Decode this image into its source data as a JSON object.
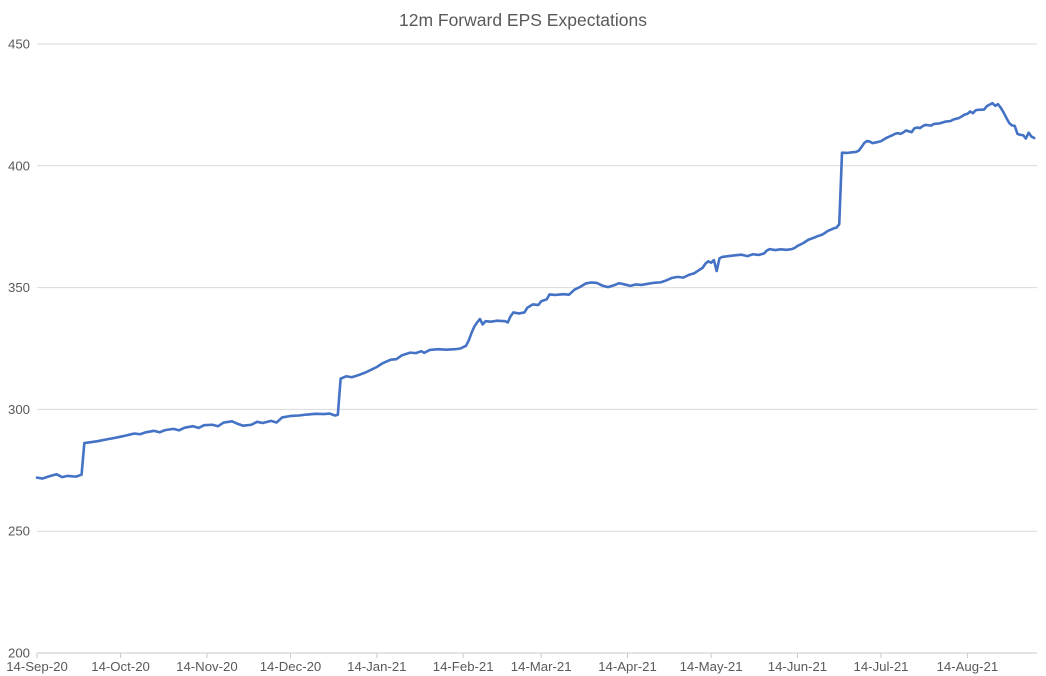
{
  "title": "12m Forward EPS Expectations",
  "colors": {
    "series": "#4472C4",
    "title_text": "#595959",
    "axis_text": "#595959",
    "gridline": "#D9D9D9",
    "axis_line": "#C9C9C9",
    "background": "#FFFFFF"
  },
  "chart_data": {
    "type": "line",
    "title": "12m Forward EPS Expectations",
    "xlabel": "",
    "ylabel": "",
    "legend": "none",
    "grid": "horizontal",
    "ylim": [
      200,
      450
    ],
    "y_ticks": [
      200,
      250,
      300,
      350,
      400,
      450
    ],
    "x_tick_labels": [
      "14-Sep-20",
      "14-Oct-20",
      "14-Nov-20",
      "14-Dec-20",
      "14-Jan-21",
      "14-Feb-21",
      "14-Mar-21",
      "14-Apr-21",
      "14-May-21",
      "14-Jun-21",
      "14-Jul-21",
      "14-Aug-21"
    ],
    "x_tick_days": [
      0,
      30,
      61,
      91,
      122,
      153,
      181,
      212,
      242,
      273,
      303,
      334
    ],
    "x_axis_max_day": 359,
    "x_start_date": "14-Sep-20",
    "series_name": "12m Forward EPS",
    "points": [
      [
        0,
        272.0
      ],
      [
        2,
        271.6
      ],
      [
        4,
        272.4
      ],
      [
        7,
        273.4
      ],
      [
        9,
        272.2
      ],
      [
        11,
        272.7
      ],
      [
        14,
        272.4
      ],
      [
        16,
        273.2
      ],
      [
        17,
        286.2
      ],
      [
        19,
        286.5
      ],
      [
        22,
        287.0
      ],
      [
        25,
        287.7
      ],
      [
        28,
        288.3
      ],
      [
        30,
        288.8
      ],
      [
        32,
        289.3
      ],
      [
        35,
        290.1
      ],
      [
        37,
        289.8
      ],
      [
        39,
        290.6
      ],
      [
        42,
        291.2
      ],
      [
        44,
        290.6
      ],
      [
        46,
        291.5
      ],
      [
        49,
        292.0
      ],
      [
        51,
        291.4
      ],
      [
        53,
        292.5
      ],
      [
        56,
        293.1
      ],
      [
        58,
        292.4
      ],
      [
        60,
        293.5
      ],
      [
        63,
        293.7
      ],
      [
        65,
        293.1
      ],
      [
        67,
        294.6
      ],
      [
        70,
        295.1
      ],
      [
        72,
        294.1
      ],
      [
        74,
        293.3
      ],
      [
        77,
        293.7
      ],
      [
        79,
        294.9
      ],
      [
        81,
        294.4
      ],
      [
        84,
        295.3
      ],
      [
        86,
        294.6
      ],
      [
        88,
        296.7
      ],
      [
        91,
        297.3
      ],
      [
        94,
        297.5
      ],
      [
        97,
        297.9
      ],
      [
        100,
        298.2
      ],
      [
        103,
        298.1
      ],
      [
        105,
        298.3
      ],
      [
        107,
        297.5
      ],
      [
        108,
        297.8
      ],
      [
        109,
        312.6
      ],
      [
        111,
        313.6
      ],
      [
        113,
        313.2
      ],
      [
        115,
        313.9
      ],
      [
        118,
        315.2
      ],
      [
        120,
        316.3
      ],
      [
        122,
        317.4
      ],
      [
        124,
        318.9
      ],
      [
        127,
        320.4
      ],
      [
        129,
        320.6
      ],
      [
        131,
        322.2
      ],
      [
        134,
        323.3
      ],
      [
        136,
        323.1
      ],
      [
        138,
        323.9
      ],
      [
        139,
        323.2
      ],
      [
        141,
        324.4
      ],
      [
        144,
        324.7
      ],
      [
        147,
        324.5
      ],
      [
        150,
        324.7
      ],
      [
        152,
        325.0
      ],
      [
        154,
        326.1
      ],
      [
        155,
        328.3
      ],
      [
        156,
        331.4
      ],
      [
        157,
        334.0
      ],
      [
        158,
        335.7
      ],
      [
        159,
        337.1
      ],
      [
        160,
        334.9
      ],
      [
        161,
        336.2
      ],
      [
        163,
        336.0
      ],
      [
        165,
        336.4
      ],
      [
        168,
        336.2
      ],
      [
        169,
        335.7
      ],
      [
        170,
        338.2
      ],
      [
        171,
        339.8
      ],
      [
        173,
        339.4
      ],
      [
        175,
        339.8
      ],
      [
        176,
        341.7
      ],
      [
        178,
        343.1
      ],
      [
        180,
        342.9
      ],
      [
        181,
        344.4
      ],
      [
        183,
        345.2
      ],
      [
        184,
        347.2
      ],
      [
        186,
        347.0
      ],
      [
        189,
        347.3
      ],
      [
        191,
        347.1
      ],
      [
        193,
        349.2
      ],
      [
        195,
        350.3
      ],
      [
        197,
        351.7
      ],
      [
        199,
        352.1
      ],
      [
        201,
        351.9
      ],
      [
        203,
        350.8
      ],
      [
        205,
        350.2
      ],
      [
        207,
        350.9
      ],
      [
        209,
        351.8
      ],
      [
        211,
        351.3
      ],
      [
        213,
        350.7
      ],
      [
        215,
        351.3
      ],
      [
        217,
        351.1
      ],
      [
        219,
        351.5
      ],
      [
        221,
        351.9
      ],
      [
        224,
        352.2
      ],
      [
        226,
        353.0
      ],
      [
        228,
        354.0
      ],
      [
        230,
        354.4
      ],
      [
        232,
        354.1
      ],
      [
        234,
        355.2
      ],
      [
        236,
        355.9
      ],
      [
        237,
        356.7
      ],
      [
        239,
        358.2
      ],
      [
        240,
        359.9
      ],
      [
        241,
        360.8
      ],
      [
        242,
        360.2
      ],
      [
        243,
        361.3
      ],
      [
        244,
        356.8
      ],
      [
        245,
        362.0
      ],
      [
        246,
        362.6
      ],
      [
        248,
        362.9
      ],
      [
        251,
        363.3
      ],
      [
        253,
        363.5
      ],
      [
        255,
        362.9
      ],
      [
        257,
        363.7
      ],
      [
        259,
        363.4
      ],
      [
        261,
        364.0
      ],
      [
        262,
        365.2
      ],
      [
        263,
        365.8
      ],
      [
        265,
        365.4
      ],
      [
        267,
        365.7
      ],
      [
        269,
        365.5
      ],
      [
        271,
        365.8
      ],
      [
        272,
        366.3
      ],
      [
        273,
        367.1
      ],
      [
        275,
        368.2
      ],
      [
        277,
        369.7
      ],
      [
        279,
        370.5
      ],
      [
        280,
        371.0
      ],
      [
        282,
        371.8
      ],
      [
        284,
        373.3
      ],
      [
        286,
        374.3
      ],
      [
        287,
        374.6
      ],
      [
        288,
        376.0
      ],
      [
        289,
        405.4
      ],
      [
        291,
        405.3
      ],
      [
        293,
        405.6
      ],
      [
        294,
        405.7
      ],
      [
        295,
        406.2
      ],
      [
        296,
        407.7
      ],
      [
        297,
        409.4
      ],
      [
        298,
        410.2
      ],
      [
        299,
        409.9
      ],
      [
        300,
        409.3
      ],
      [
        302,
        409.8
      ],
      [
        303,
        410.1
      ],
      [
        305,
        411.5
      ],
      [
        307,
        412.5
      ],
      [
        308,
        413.1
      ],
      [
        309,
        413.4
      ],
      [
        310,
        413.1
      ],
      [
        311,
        413.7
      ],
      [
        312,
        414.5
      ],
      [
        314,
        413.8
      ],
      [
        315,
        415.4
      ],
      [
        316,
        415.7
      ],
      [
        317,
        415.5
      ],
      [
        318,
        416.3
      ],
      [
        319,
        416.8
      ],
      [
        321,
        416.5
      ],
      [
        322,
        417.2
      ],
      [
        324,
        417.4
      ],
      [
        326,
        418.1
      ],
      [
        328,
        418.4
      ],
      [
        329,
        419.0
      ],
      [
        331,
        419.6
      ],
      [
        332,
        420.3
      ],
      [
        333,
        421.0
      ],
      [
        334,
        421.3
      ],
      [
        335,
        422.3
      ],
      [
        336,
        421.6
      ],
      [
        337,
        422.8
      ],
      [
        338,
        423.0
      ],
      [
        340,
        423.1
      ],
      [
        341,
        424.5
      ],
      [
        342,
        425.1
      ],
      [
        343,
        425.7
      ],
      [
        344,
        424.6
      ],
      [
        345,
        425.3
      ],
      [
        346,
        423.8
      ],
      [
        347,
        421.9
      ],
      [
        348,
        419.7
      ],
      [
        349,
        417.6
      ],
      [
        350,
        416.6
      ],
      [
        351,
        416.4
      ],
      [
        352,
        413.1
      ],
      [
        353,
        412.7
      ],
      [
        354,
        412.6
      ],
      [
        355,
        411.2
      ],
      [
        356,
        413.6
      ],
      [
        357,
        412.0
      ],
      [
        358,
        411.4
      ]
    ]
  }
}
